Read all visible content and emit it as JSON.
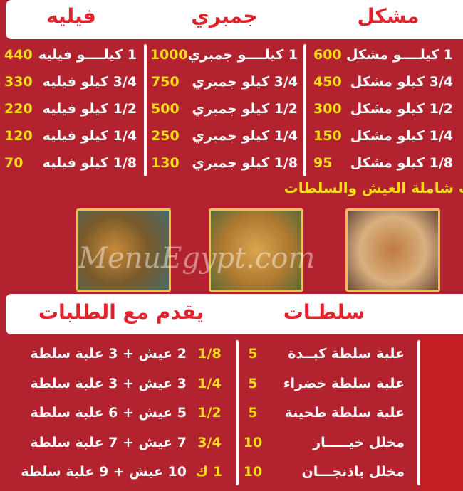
{
  "top_sections": [
    {
      "title": "مشكل",
      "items": [
        {
          "name": "1 كيلــــو مشكل",
          "price": "600"
        },
        {
          "name": "3/4 كيلو مشكل",
          "price": "450"
        },
        {
          "name": "1/2 كيلو مشكل",
          "price": "300"
        },
        {
          "name": "1/4 كيلو مشكل",
          "price": "150"
        },
        {
          "name": "1/8 كيلو مشكل",
          "price": "95"
        }
      ]
    },
    {
      "title": "جمبري",
      "items": [
        {
          "name": "1 كيلــــو جمبري",
          "price": "1000"
        },
        {
          "name": "3/4 كيلو جمبري",
          "price": "750"
        },
        {
          "name": "1/2 كيلو جمبري",
          "price": "500"
        },
        {
          "name": "1/4 كيلو جمبري",
          "price": "250"
        },
        {
          "name": "1/8 كيلو جمبري",
          "price": "130"
        }
      ]
    },
    {
      "title": "فيليه",
      "items": [
        {
          "name": "1 كيلــــو فيليه",
          "price": "440"
        },
        {
          "name": "3/4 كيلو فيليه",
          "price": "330"
        },
        {
          "name": "1/2 كيلو فيليه",
          "price": "220"
        },
        {
          "name": "1/4 كيلو فيليه",
          "price": "120"
        },
        {
          "name": "1/8 كيلو فيليه",
          "price": "70"
        }
      ]
    }
  ],
  "banner": "ت شاملة العيش والسلطات",
  "watermark": "MenuEgypt.com",
  "salads": {
    "title": "سلطـات",
    "items": [
      {
        "name": "علبة سلطة كبــدة",
        "price": "5"
      },
      {
        "name": "علبة سلطة خضراء",
        "price": "5"
      },
      {
        "name": "علبة سلطة طحينة",
        "price": "5"
      },
      {
        "name": "مخلل خيـــــار",
        "price": "10"
      },
      {
        "name": "مخلل باذنجـــان",
        "price": "10"
      }
    ]
  },
  "served": {
    "title": "يقدم مع الطلبات",
    "items": [
      {
        "size": "1/8",
        "desc": "2 عيش + 3 علبة سلطة"
      },
      {
        "size": "1/4",
        "desc": "3 عيش + 3 علبة سلطة"
      },
      {
        "size": "1/2",
        "desc": "5 عيش + 6 علبة سلطة"
      },
      {
        "size": "3/4",
        "desc": "7 عيش + 7 علبة سلطة"
      },
      {
        "size": "1 ك",
        "desc": "10 عيش + 9 علبة سلطة"
      }
    ]
  },
  "colors": {
    "background": "#b3232f",
    "title": "#e0222c",
    "price": "#f7dc1a"
  }
}
